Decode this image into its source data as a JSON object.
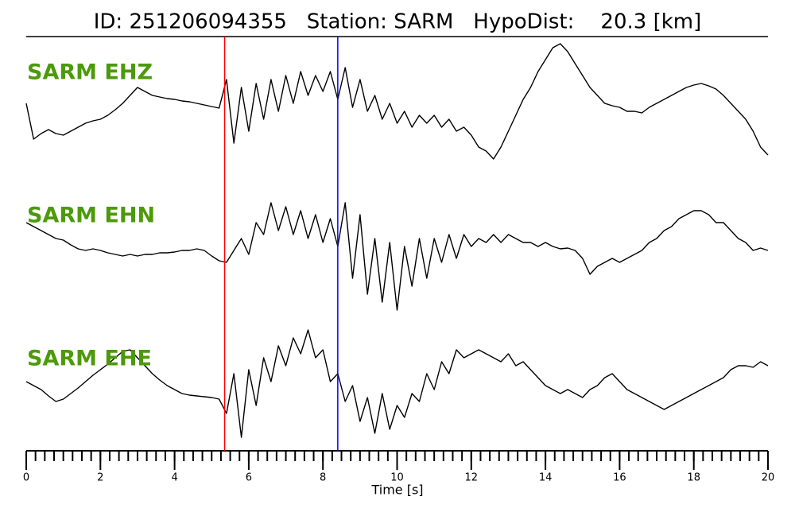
{
  "chart_data": {
    "type": "line",
    "title": "ID: 251206094355   Station: SARM   HypoDist:    20.3 [km]",
    "xlabel": "Time [s]",
    "xlim": [
      0,
      20
    ],
    "xticks": [
      0,
      2,
      4,
      6,
      8,
      10,
      12,
      14,
      16,
      18,
      20
    ],
    "xminor_step": 0.25,
    "ylim": [
      -85,
      85
    ],
    "label_color": "#4c9a0a",
    "picks": [
      {
        "x": 5.35,
        "color": "#ff0000"
      },
      {
        "x": 8.4,
        "color": "#0000ff"
      }
    ],
    "x": [
      0,
      0.2,
      0.4,
      0.6,
      0.8,
      1,
      1.2,
      1.4,
      1.6,
      1.8,
      2,
      2.2,
      2.4,
      2.6,
      2.8,
      3,
      3.2,
      3.4,
      3.6,
      3.8,
      4,
      4.2,
      4.4,
      4.6,
      4.8,
      5,
      5.2,
      5.4,
      5.6,
      5.8,
      6,
      6.2,
      6.4,
      6.6,
      6.8,
      7,
      7.2,
      7.4,
      7.6,
      7.8,
      8,
      8.2,
      8.4,
      8.6,
      8.8,
      9,
      9.2,
      9.4,
      9.6,
      9.8,
      10,
      10.2,
      10.4,
      10.6,
      10.8,
      11,
      11.2,
      11.4,
      11.6,
      11.8,
      12,
      12.2,
      12.4,
      12.6,
      12.8,
      13,
      13.2,
      13.4,
      13.6,
      13.8,
      14,
      14.2,
      14.4,
      14.6,
      14.8,
      15,
      15.2,
      15.4,
      15.6,
      15.8,
      16,
      16.2,
      16.4,
      16.6,
      16.8,
      17,
      17.2,
      17.4,
      17.6,
      17.8,
      18,
      18.2,
      18.4,
      18.6,
      18.8,
      19,
      19.2,
      19.4,
      19.6,
      19.8,
      20
    ],
    "series": [
      {
        "name": "SARM EHZ",
        "color": "#000000",
        "values": [
          0,
          -45,
          -38,
          -33,
          -38,
          -40,
          -35,
          -30,
          -25,
          -22,
          -20,
          -15,
          -8,
          0,
          10,
          20,
          15,
          10,
          8,
          6,
          5,
          3,
          2,
          0,
          -2,
          -4,
          -6,
          30,
          -50,
          20,
          -35,
          25,
          -20,
          30,
          -10,
          35,
          0,
          40,
          10,
          35,
          15,
          40,
          5,
          45,
          -5,
          30,
          -10,
          10,
          -20,
          0,
          -25,
          -10,
          -30,
          -15,
          -25,
          -15,
          -30,
          -20,
          -35,
          -30,
          -40,
          -55,
          -60,
          -70,
          -55,
          -35,
          -15,
          5,
          20,
          40,
          55,
          70,
          75,
          65,
          50,
          35,
          20,
          10,
          0,
          -3,
          -5,
          -10,
          -10,
          -12,
          -5,
          0,
          5,
          10,
          15,
          20,
          23,
          25,
          22,
          18,
          10,
          0,
          -10,
          -20,
          -35,
          -55,
          -65
        ]
      },
      {
        "name": "SARM EHN",
        "color": "#000000",
        "values": [
          30,
          25,
          20,
          15,
          10,
          8,
          2,
          -3,
          -5,
          -3,
          -5,
          -8,
          -10,
          -12,
          -10,
          -12,
          -10,
          -10,
          -8,
          -8,
          -7,
          -5,
          -5,
          -3,
          -5,
          -12,
          -18,
          -20,
          -5,
          10,
          -10,
          30,
          15,
          55,
          20,
          50,
          15,
          45,
          10,
          40,
          5,
          35,
          0,
          55,
          -40,
          40,
          -60,
          10,
          -70,
          5,
          -80,
          0,
          -50,
          10,
          -40,
          10,
          -20,
          15,
          -15,
          15,
          0,
          10,
          5,
          15,
          5,
          15,
          10,
          5,
          5,
          0,
          5,
          0,
          -3,
          -2,
          -5,
          -15,
          -35,
          -25,
          -20,
          -15,
          -20,
          -15,
          -10,
          -5,
          5,
          10,
          20,
          25,
          35,
          40,
          45,
          45,
          40,
          30,
          30,
          20,
          10,
          5,
          -5,
          -2,
          -5
        ]
      },
      {
        "name": "SARM EHE",
        "color": "#000000",
        "values": [
          10,
          5,
          0,
          -8,
          -15,
          -12,
          -5,
          2,
          10,
          18,
          25,
          32,
          40,
          48,
          50,
          40,
          30,
          20,
          12,
          5,
          0,
          -5,
          -7,
          -8,
          -9,
          -10,
          -12,
          -30,
          20,
          -60,
          25,
          -20,
          40,
          10,
          55,
          30,
          65,
          45,
          75,
          40,
          50,
          10,
          20,
          -15,
          5,
          -40,
          -10,
          -55,
          -5,
          -50,
          -20,
          -35,
          -5,
          -15,
          20,
          0,
          35,
          20,
          50,
          40,
          45,
          50,
          45,
          40,
          35,
          45,
          30,
          35,
          25,
          15,
          5,
          0,
          -5,
          0,
          -5,
          -10,
          0,
          5,
          15,
          20,
          10,
          0,
          -5,
          -10,
          -15,
          -20,
          -25,
          -20,
          -15,
          -10,
          -5,
          0,
          5,
          10,
          15,
          25,
          30,
          30,
          28,
          35,
          30
        ]
      }
    ]
  }
}
